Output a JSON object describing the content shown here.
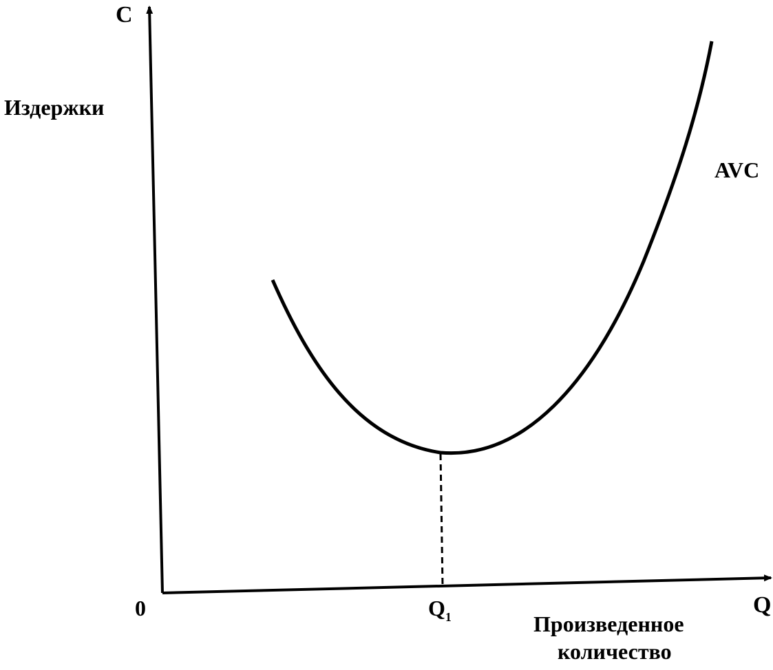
{
  "axes": {
    "y_symbol": "C",
    "y_label": "Издержки",
    "origin": "0",
    "x_symbol": "Q",
    "x_label": [
      "Произведенное",
      "количество"
    ]
  },
  "curve": {
    "label": "AVC"
  },
  "marker": {
    "symbol": "Q",
    "subscript": "1"
  }
}
